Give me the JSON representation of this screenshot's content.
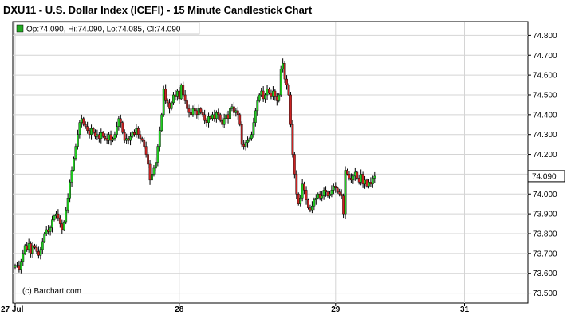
{
  "chart_data": {
    "type": "candlestick",
    "title": "DXU11 - U.S. Dollar Index (ICEFI) - 15 Minute Candlestick Chart",
    "legend": {
      "label": "Op:74.090, Hi:74.090, Lo:74.085, Cl:74.090",
      "color": "#22aa22"
    },
    "credit": "(c) Barchart.com",
    "ylim": [
      73.45,
      74.87
    ],
    "y_ticks": [
      "74.800",
      "74.700",
      "74.600",
      "74.500",
      "74.400",
      "74.300",
      "74.200",
      "74.100",
      "74.000",
      "73.900",
      "73.800",
      "73.700",
      "73.600",
      "73.500"
    ],
    "x_ticks": [
      "27 Jul",
      "28",
      "29",
      "31"
    ],
    "x_tick_index": [
      0,
      84,
      164,
      230
    ],
    "last_value_label": "74.090",
    "last_value": 74.09,
    "grid": true,
    "up_color": "#22cc22",
    "down_color": "#cc2222",
    "closes": [
      73.64,
      73.64,
      73.62,
      73.66,
      73.7,
      73.74,
      73.72,
      73.75,
      73.7,
      73.74,
      73.73,
      73.71,
      73.69,
      73.72,
      73.76,
      73.8,
      73.82,
      73.81,
      73.83,
      73.87,
      73.89,
      73.9,
      73.88,
      73.85,
      73.82,
      73.86,
      73.92,
      73.98,
      74.06,
      74.12,
      74.18,
      74.24,
      74.3,
      74.36,
      74.38,
      74.35,
      74.34,
      74.32,
      74.3,
      74.33,
      74.31,
      74.29,
      74.3,
      74.28,
      74.31,
      74.29,
      74.28,
      74.27,
      74.3,
      74.27,
      74.28,
      74.3,
      74.34,
      74.38,
      74.36,
      74.31,
      74.27,
      74.28,
      74.27,
      74.29,
      74.31,
      74.3,
      74.33,
      74.3,
      74.28,
      74.27,
      74.24,
      74.2,
      74.15,
      74.07,
      74.1,
      74.13,
      74.16,
      74.24,
      74.32,
      74.4,
      74.53,
      74.47,
      74.46,
      74.43,
      74.46,
      74.5,
      74.49,
      74.52,
      74.48,
      74.55,
      74.5,
      74.47,
      74.43,
      74.41,
      74.4,
      74.43,
      74.42,
      74.4,
      74.43,
      74.41,
      74.4,
      74.37,
      74.36,
      74.39,
      74.38,
      74.4,
      74.38,
      74.41,
      74.4,
      74.37,
      74.35,
      74.38,
      74.4,
      74.38,
      74.43,
      74.44,
      74.41,
      74.42,
      74.4,
      74.35,
      74.25,
      74.24,
      74.26,
      74.27,
      74.28,
      74.3,
      74.36,
      74.42,
      74.47,
      74.5,
      74.52,
      74.48,
      74.5,
      74.53,
      74.51,
      74.49,
      74.52,
      74.49,
      74.47,
      74.5,
      74.63,
      74.66,
      74.58,
      74.55,
      74.5,
      74.35,
      74.2,
      74.1,
      74.0,
      73.95,
      73.98,
      74.05,
      74.02,
      73.97,
      73.93,
      73.92,
      73.94,
      73.97,
      73.98,
      74.0,
      73.98,
      73.99,
      74.02,
      74.01,
      73.99,
      74.0,
      74.02,
      74.04,
      74.03,
      74.01,
      74.0,
      73.99,
      73.9,
      74.12,
      74.1,
      74.08,
      74.07,
      74.09,
      74.11,
      74.08,
      74.06,
      74.1,
      74.05,
      74.07,
      74.04,
      74.06,
      74.05,
      74.08,
      74.09
    ]
  }
}
